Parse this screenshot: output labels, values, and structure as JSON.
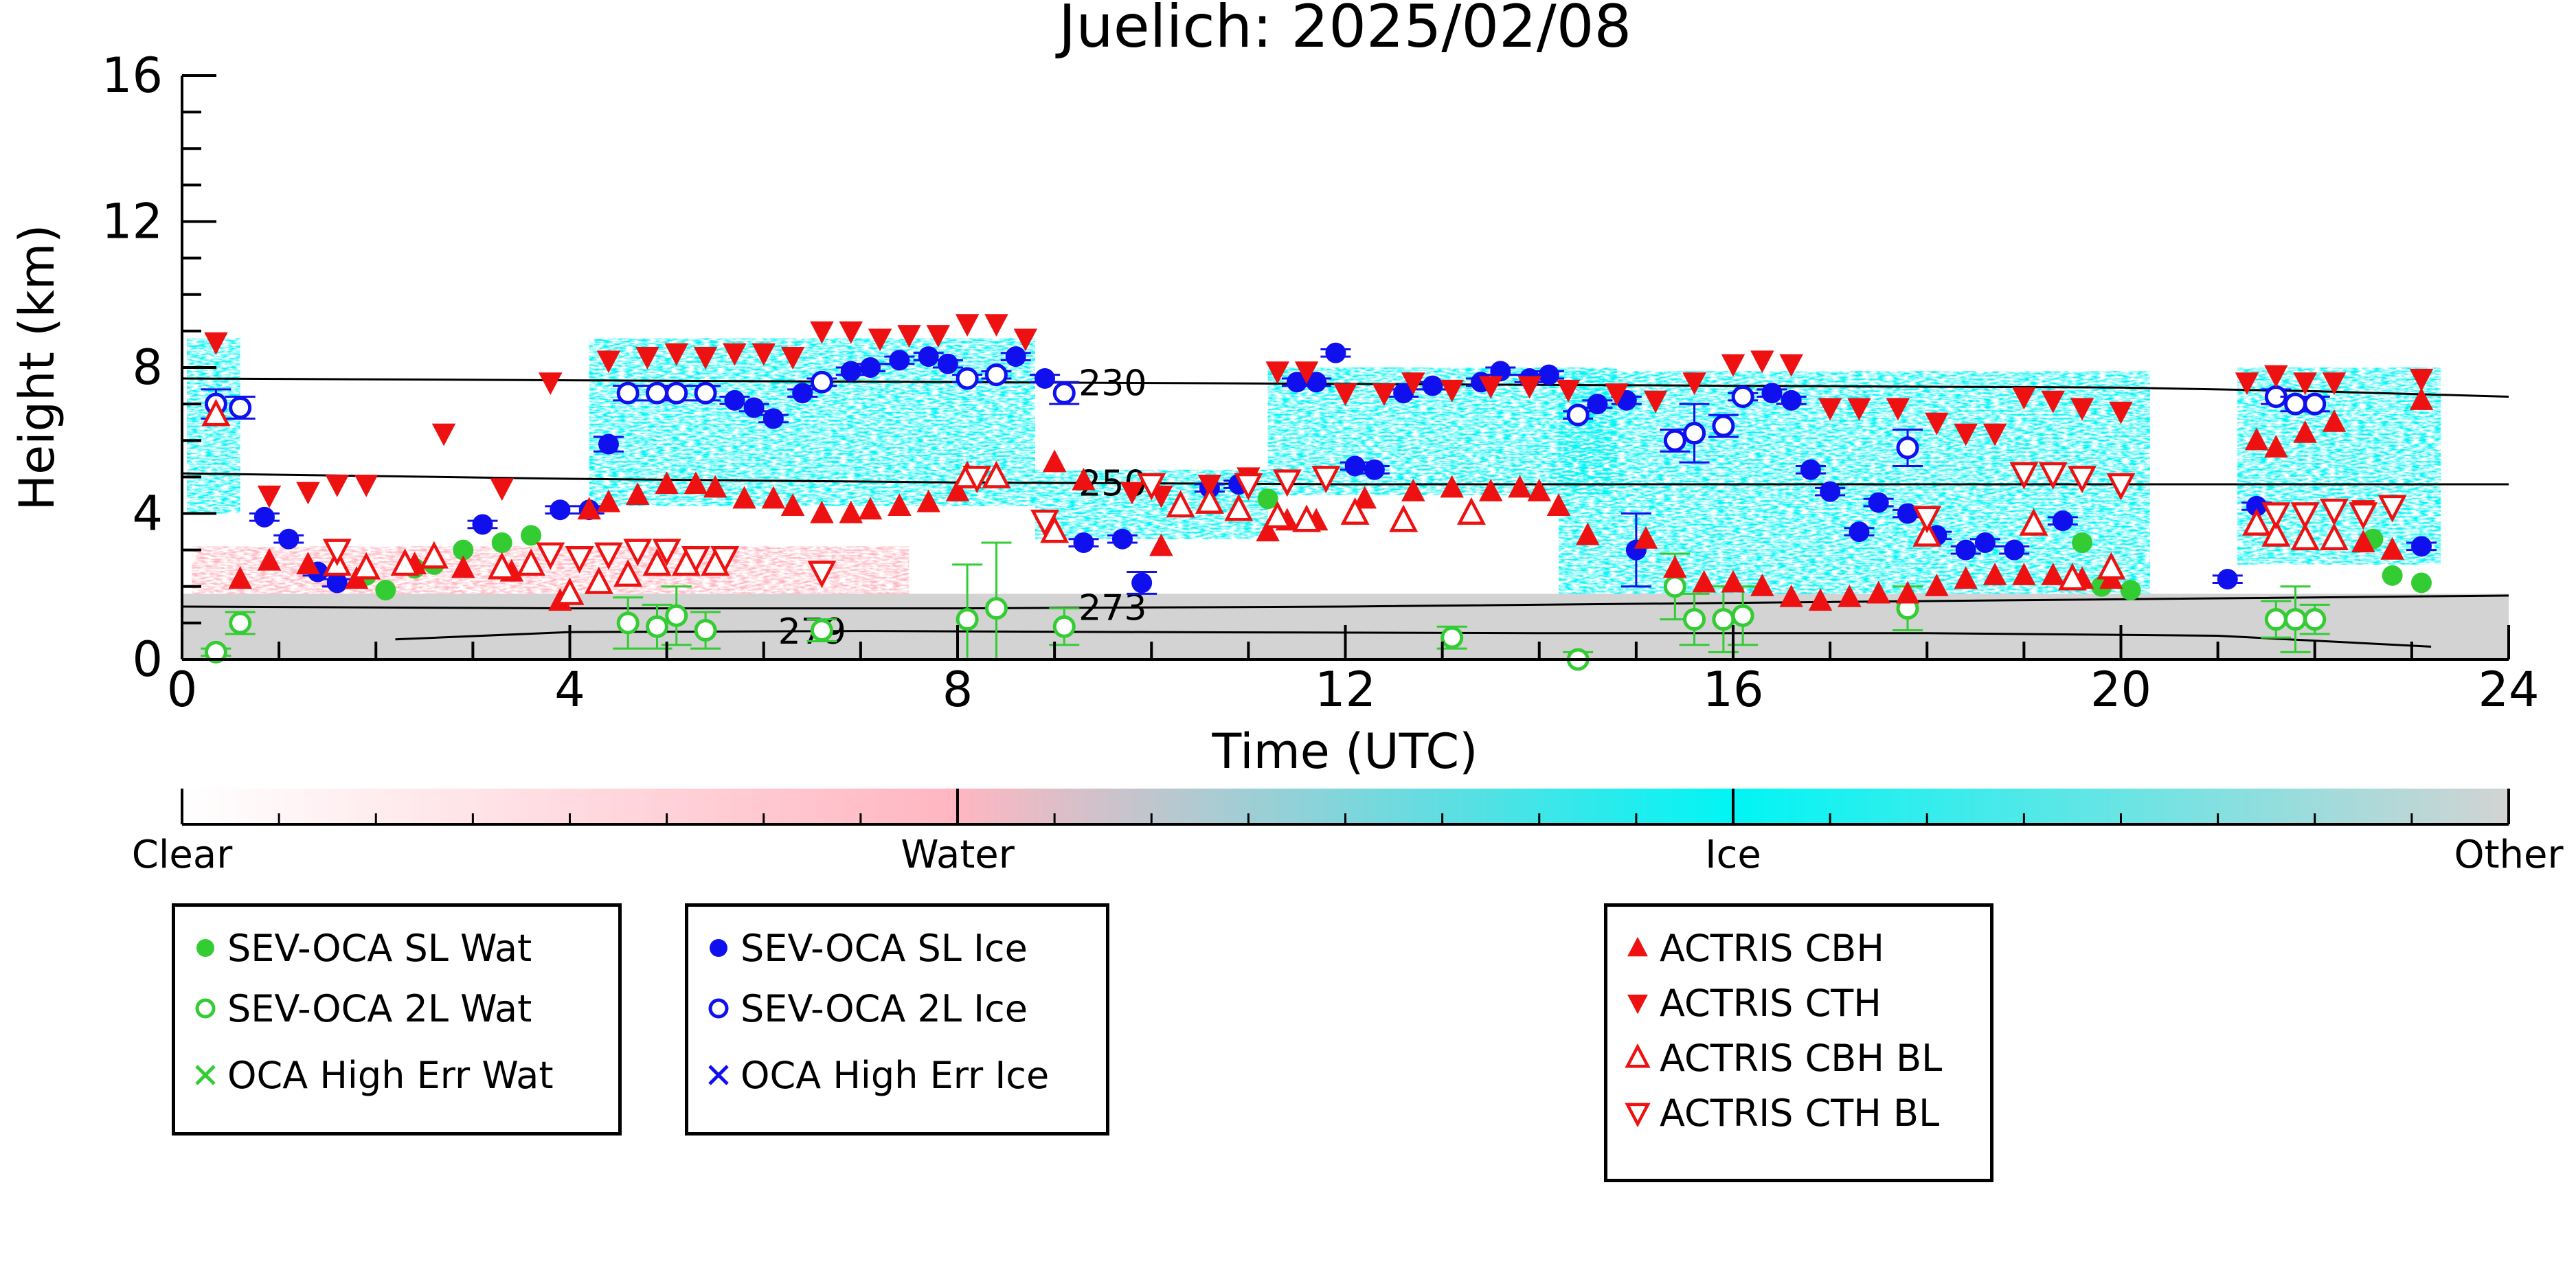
{
  "chart_data": {
    "type": "scatter",
    "title": "Juelich: 2025/02/08",
    "xlabel": "Time (UTC)",
    "ylabel": "Height (km)",
    "xlim": [
      0,
      24
    ],
    "ylim": [
      0,
      16
    ],
    "xticks": [
      0,
      4,
      8,
      12,
      16,
      20,
      24
    ],
    "yticks": [
      0,
      4,
      8,
      12,
      16
    ],
    "grid": false,
    "legend_placement": "below",
    "background_mask": {
      "description_categories": [
        "Clear",
        "Water",
        "Ice",
        "Other"
      ],
      "ice_regions": [
        {
          "x0": 0.05,
          "x1": 0.6,
          "y0": 4.0,
          "y1": 8.8
        },
        {
          "x0": 4.2,
          "x1": 8.8,
          "y0": 4.2,
          "y1": 8.8
        },
        {
          "x0": 8.8,
          "x1": 11.2,
          "y0": 3.3,
          "y1": 5.2
        },
        {
          "x0": 11.2,
          "x1": 14.8,
          "y0": 4.5,
          "y1": 8.0
        },
        {
          "x0": 14.2,
          "x1": 20.3,
          "y0": 1.6,
          "y1": 7.9
        },
        {
          "x0": 21.2,
          "x1": 23.3,
          "y0": 2.6,
          "y1": 8.0
        }
      ],
      "other_regions": [
        {
          "x0": 0,
          "x1": 24,
          "y0": 0,
          "y1": 1.8
        }
      ],
      "water_regions": [
        {
          "x0": 0.1,
          "x1": 7.5,
          "y0": 1.8,
          "y1": 3.1
        }
      ]
    },
    "contours": [
      {
        "label": "230",
        "label_x": 9.6,
        "x": [
          0,
          4,
          8,
          12,
          16,
          20,
          22,
          24
        ],
        "y": [
          7.7,
          7.65,
          7.6,
          7.55,
          7.5,
          7.45,
          7.35,
          7.2
        ]
      },
      {
        "label": "250",
        "label_x": 9.6,
        "x": [
          0,
          4,
          8,
          12,
          16,
          20,
          24
        ],
        "y": [
          5.1,
          4.95,
          4.85,
          4.8,
          4.8,
          4.8,
          4.8
        ]
      },
      {
        "label": "273",
        "label_x": 9.6,
        "x": [
          0,
          4,
          8,
          12,
          16,
          20,
          24
        ],
        "y": [
          1.45,
          1.4,
          1.4,
          1.45,
          1.55,
          1.65,
          1.75
        ]
      },
      {
        "label": "279",
        "label_x": 6.5,
        "x": [
          2.2,
          4,
          7,
          10,
          14,
          18,
          21,
          23.2
        ],
        "y": [
          0.55,
          0.75,
          0.78,
          0.75,
          0.72,
          0.72,
          0.65,
          0.35
        ]
      }
    ],
    "series": [
      {
        "name": "SEV-OCA SL Wat",
        "color": "#33cc33",
        "marker": "filled-circle",
        "x": [
          1.9,
          2.1,
          2.4,
          2.6,
          2.9,
          3.3,
          3.6,
          11.2,
          19.6,
          19.8,
          20.1,
          22.6,
          22.8,
          23.1
        ],
        "y": [
          2.3,
          1.9,
          2.5,
          2.6,
          3.0,
          3.2,
          3.4,
          4.4,
          3.2,
          2.0,
          1.9,
          3.3,
          2.3,
          2.1
        ]
      },
      {
        "name": "SEV-OCA 2L Wat",
        "color": "#33cc33",
        "marker": "open-circle",
        "x": [
          0.35,
          0.6,
          4.6,
          4.9,
          5.1,
          5.4,
          6.6,
          8.1,
          8.4,
          9.1,
          13.1,
          14.4,
          15.4,
          15.6,
          15.9,
          16.1,
          17.8,
          21.6,
          21.8,
          22.0
        ],
        "y": [
          0.2,
          1.0,
          1.0,
          0.9,
          1.2,
          0.8,
          0.8,
          1.1,
          1.4,
          0.9,
          0.6,
          0.0,
          2.0,
          1.1,
          1.1,
          1.2,
          1.4,
          1.1,
          1.1,
          1.1
        ],
        "yerr": [
          0.1,
          0.3,
          0.7,
          0.6,
          0.8,
          0.5,
          0.3,
          1.5,
          1.8,
          0.5,
          0.3,
          0.2,
          0.9,
          0.7,
          0.9,
          0.8,
          0.6,
          0.5,
          0.9,
          0.4
        ]
      },
      {
        "name": "OCA High Err Wat",
        "color": "#33cc33",
        "marker": "x",
        "x": [],
        "y": []
      },
      {
        "name": "SEV-OCA SL Ice",
        "color": "#1010ee",
        "marker": "filled-circle",
        "x": [
          0.85,
          1.1,
          1.4,
          1.6,
          3.1,
          3.9,
          4.2,
          4.4,
          5.7,
          5.9,
          6.1,
          6.4,
          6.9,
          7.1,
          7.4,
          7.7,
          7.9,
          8.6,
          8.9,
          9.3,
          9.7,
          9.9,
          10.6,
          10.9,
          11.5,
          11.7,
          11.9,
          12.1,
          12.3,
          12.6,
          12.9,
          13.4,
          13.6,
          13.9,
          14.1,
          14.6,
          14.9,
          15.0,
          16.4,
          16.6,
          16.8,
          17.0,
          17.3,
          17.5,
          17.8,
          18.1,
          18.4,
          18.6,
          18.9,
          19.4,
          21.1,
          21.4,
          23.1
        ],
        "y": [
          3.9,
          3.3,
          2.4,
          2.1,
          3.7,
          4.1,
          4.1,
          5.9,
          7.1,
          6.9,
          6.6,
          7.3,
          7.9,
          8.0,
          8.2,
          8.3,
          8.1,
          8.3,
          7.7,
          3.2,
          3.3,
          2.1,
          4.7,
          4.8,
          7.6,
          7.6,
          8.4,
          5.3,
          5.2,
          7.3,
          7.5,
          7.6,
          7.9,
          7.7,
          7.8,
          7.0,
          7.1,
          3.0,
          7.3,
          7.1,
          5.2,
          4.6,
          3.5,
          4.3,
          4.0,
          3.4,
          3.0,
          3.2,
          3.0,
          3.8,
          2.2,
          4.2,
          3.1
        ],
        "yerr": [
          0.1,
          0.1,
          0.1,
          0.1,
          0.1,
          0.1,
          0.1,
          0.2,
          0.1,
          0.1,
          0.1,
          0.1,
          0.1,
          0.1,
          0.1,
          0.1,
          0.1,
          0.1,
          0.1,
          0.1,
          0.1,
          0.3,
          0.1,
          0.1,
          0.1,
          0.1,
          0.1,
          0.1,
          0.1,
          0.1,
          0.1,
          0.1,
          0.1,
          0.1,
          0.1,
          0.1,
          0.1,
          1.0,
          0.1,
          0.1,
          0.1,
          0.1,
          0.1,
          0.1,
          0.1,
          0.1,
          0.1,
          0.1,
          0.1,
          0.1,
          0.1,
          0.1,
          0.1
        ]
      },
      {
        "name": "SEV-OCA 2L Ice",
        "color": "#1010ee",
        "marker": "open-circle",
        "x": [
          0.35,
          0.6,
          4.6,
          4.9,
          5.1,
          5.4,
          6.6,
          8.1,
          8.4,
          9.1,
          14.4,
          15.4,
          15.6,
          15.9,
          16.1,
          17.8,
          21.6,
          21.8,
          22.0
        ],
        "y": [
          7.0,
          6.9,
          7.3,
          7.3,
          7.3,
          7.3,
          7.6,
          7.7,
          7.8,
          7.3,
          6.7,
          6.0,
          6.2,
          6.4,
          7.2,
          5.8,
          7.2,
          7.0,
          7.0
        ],
        "yerr": [
          0.4,
          0.3,
          0.2,
          0.2,
          0.2,
          0.2,
          0.1,
          0.1,
          0.1,
          0.3,
          0.1,
          0.3,
          0.8,
          0.3,
          0.1,
          0.5,
          0.2,
          0.2,
          0.2
        ]
      },
      {
        "name": "OCA High Err Ice",
        "color": "#1010ee",
        "marker": "x",
        "x": [],
        "y": []
      },
      {
        "name": "ACTRIS CBH",
        "color": "#ee1111",
        "marker": "triangle-up",
        "x": [
          0.6,
          0.9,
          1.3,
          1.8,
          2.4,
          2.9,
          3.4,
          3.9,
          4.2,
          4.4,
          4.7,
          5.0,
          5.3,
          5.5,
          5.8,
          6.1,
          6.3,
          6.6,
          6.9,
          7.1,
          7.4,
          7.7,
          8.0,
          9.0,
          9.3,
          10.1,
          11.2,
          11.4,
          11.7,
          12.2,
          12.7,
          13.1,
          13.5,
          13.8,
          14.0,
          14.2,
          14.5,
          15.1,
          15.4,
          15.7,
          16.0,
          16.3,
          16.6,
          16.9,
          17.2,
          17.5,
          17.8,
          18.1,
          18.4,
          18.7,
          19.0,
          19.3,
          19.6,
          19.9,
          21.4,
          21.6,
          21.9,
          22.2,
          22.5,
          22.8,
          23.1
        ],
        "y": [
          2.2,
          2.7,
          2.6,
          2.2,
          2.6,
          2.5,
          2.4,
          1.6,
          4.1,
          4.3,
          4.5,
          4.8,
          4.8,
          4.7,
          4.4,
          4.4,
          4.2,
          4.0,
          4.0,
          4.1,
          4.2,
          4.3,
          4.6,
          5.4,
          4.9,
          3.1,
          3.5,
          3.8,
          3.8,
          4.4,
          4.6,
          4.7,
          4.6,
          4.7,
          4.6,
          4.2,
          3.4,
          3.3,
          2.5,
          2.1,
          2.1,
          2.0,
          1.7,
          1.6,
          1.7,
          1.8,
          1.8,
          2.0,
          2.2,
          2.3,
          2.3,
          2.3,
          2.2,
          2.2,
          6.0,
          5.8,
          6.2,
          6.5,
          3.2,
          3.0,
          7.1
        ],
        "yerr": []
      },
      {
        "name": "ACTRIS CTH",
        "color": "#ee1111",
        "marker": "triangle-down",
        "x": [
          0.35,
          0.9,
          1.3,
          1.6,
          1.9,
          2.7,
          3.3,
          3.8,
          4.4,
          4.8,
          5.1,
          5.4,
          5.7,
          6.0,
          6.3,
          6.6,
          6.9,
          7.2,
          7.5,
          7.8,
          8.1,
          8.4,
          8.7,
          9.8,
          10.1,
          10.6,
          11.0,
          11.3,
          11.6,
          12.0,
          12.4,
          12.7,
          13.1,
          13.5,
          13.9,
          14.3,
          14.8,
          15.2,
          15.6,
          16.0,
          16.3,
          16.6,
          17.0,
          17.3,
          17.7,
          18.1,
          18.4,
          18.7,
          19.0,
          19.3,
          19.6,
          20.0,
          21.3,
          21.6,
          21.9,
          22.2,
          22.5,
          22.8,
          23.1
        ],
        "y": [
          8.7,
          4.5,
          4.6,
          4.8,
          4.8,
          6.2,
          4.7,
          7.6,
          8.2,
          8.3,
          8.4,
          8.3,
          8.4,
          8.4,
          8.3,
          9.0,
          9.0,
          8.8,
          8.9,
          8.9,
          9.2,
          9.2,
          8.8,
          4.6,
          4.5,
          4.8,
          5.0,
          7.9,
          7.9,
          7.3,
          7.3,
          7.6,
          7.4,
          7.5,
          7.5,
          7.4,
          7.3,
          7.1,
          7.6,
          8.1,
          8.2,
          8.1,
          6.9,
          6.9,
          6.9,
          6.5,
          6.2,
          6.2,
          7.2,
          7.1,
          6.9,
          6.8,
          7.6,
          7.8,
          7.6,
          7.6,
          4.1,
          4.2,
          7.7
        ],
        "yerr": []
      },
      {
        "name": "ACTRIS CBH BL",
        "color": "#ee1111",
        "marker": "open-triangle-up",
        "x": [
          0.35,
          1.6,
          1.9,
          2.3,
          2.6,
          3.3,
          3.6,
          4.0,
          4.3,
          4.6,
          4.9,
          5.2,
          5.5,
          8.1,
          8.4,
          9.0,
          10.3,
          10.6,
          10.9,
          11.3,
          11.6,
          12.1,
          12.6,
          13.3,
          18.0,
          19.1,
          19.5,
          19.9,
          21.4,
          21.6,
          21.9,
          22.2
        ],
        "y": [
          6.7,
          2.6,
          2.5,
          2.6,
          2.8,
          2.5,
          2.6,
          1.8,
          2.1,
          2.3,
          2.6,
          2.6,
          2.6,
          5.0,
          5.0,
          3.5,
          4.2,
          4.3,
          4.1,
          3.9,
          3.8,
          4.0,
          3.8,
          4.0,
          3.4,
          3.7,
          2.2,
          2.5,
          3.7,
          3.4,
          3.3,
          3.3
        ],
        "yerr": []
      },
      {
        "name": "ACTRIS CTH BL",
        "color": "#ee1111",
        "marker": "open-triangle-down",
        "x": [
          1.6,
          3.8,
          4.1,
          4.4,
          4.7,
          5.0,
          5.3,
          5.6,
          6.6,
          8.2,
          8.9,
          10.0,
          11.0,
          11.4,
          11.8,
          18.0,
          19.0,
          19.3,
          19.6,
          20.0,
          21.6,
          21.9,
          22.2,
          22.5,
          22.8
        ],
        "y": [
          3.0,
          2.9,
          2.8,
          2.9,
          3.0,
          3.0,
          2.8,
          2.8,
          2.4,
          5.0,
          3.8,
          4.8,
          4.8,
          4.9,
          5.0,
          3.9,
          5.1,
          5.1,
          5.0,
          4.8,
          4.0,
          4.0,
          4.1,
          4.0,
          4.2
        ],
        "yerr": []
      }
    ],
    "colorbar": {
      "labels": [
        "Clear",
        "Water",
        "Ice",
        "Other"
      ],
      "colors": [
        "#ffffff",
        "#ffb6c1",
        "#00f5f5",
        "#d3d3d3"
      ]
    }
  },
  "legend_groups": [
    {
      "items": [
        {
          "label": "SEV-OCA SL Wat",
          "color": "#33cc33",
          "marker": "filled-circle"
        },
        {
          "label": "SEV-OCA 2L Wat",
          "color": "#33cc33",
          "marker": "open-circle"
        },
        {
          "label": "OCA High Err Wat",
          "color": "#33cc33",
          "marker": "x"
        }
      ]
    },
    {
      "items": [
        {
          "label": "SEV-OCA SL Ice",
          "color": "#1010ee",
          "marker": "filled-circle"
        },
        {
          "label": "SEV-OCA 2L Ice",
          "color": "#1010ee",
          "marker": "open-circle"
        },
        {
          "label": "OCA High Err Ice",
          "color": "#1010ee",
          "marker": "x"
        }
      ]
    },
    {
      "items": [
        {
          "label": "ACTRIS CBH",
          "color": "#ee1111",
          "marker": "triangle-up"
        },
        {
          "label": "ACTRIS CTH",
          "color": "#ee1111",
          "marker": "triangle-down"
        },
        {
          "label": "ACTRIS CBH BL",
          "color": "#ee1111",
          "marker": "open-triangle-up"
        },
        {
          "label": "ACTRIS CTH BL",
          "color": "#ee1111",
          "marker": "open-triangle-down"
        }
      ]
    }
  ]
}
